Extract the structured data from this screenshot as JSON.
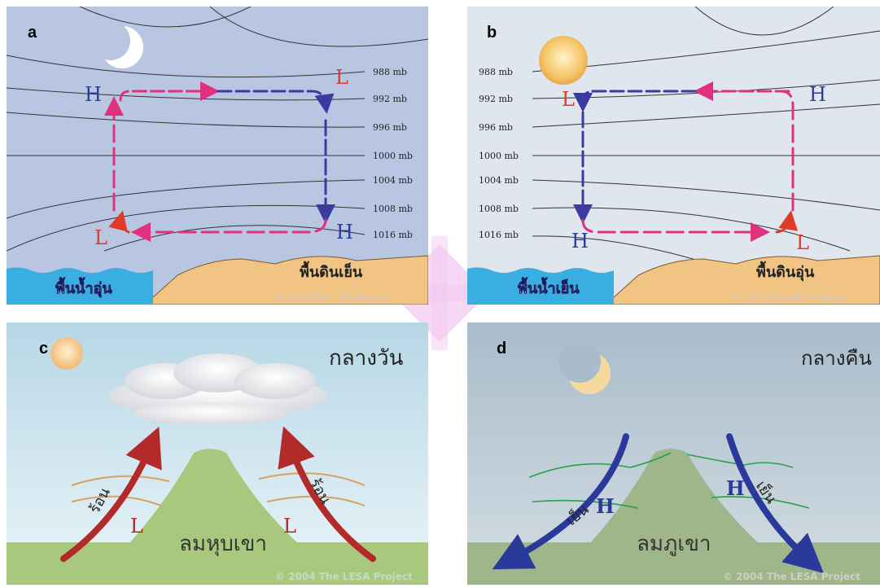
{
  "panels": {
    "a": {
      "letter": "a",
      "isobars": [
        "988 mb",
        "992 mb",
        "996 mb",
        "1000 mb",
        "1004 mb",
        "1008 mb",
        "1016 mb"
      ],
      "high_top": "H",
      "low_top": "L",
      "low_bottom": "L",
      "high_bottom": "H",
      "water_label": "พื้นน้ำอุ่น",
      "land_label": "พื้นดินเย็น",
      "copyright": "© 2003 The LESA Project"
    },
    "b": {
      "letter": "b",
      "isobars": [
        "988 mb",
        "992 mb",
        "996 mb",
        "1000 mb",
        "1004 mb",
        "1008 mb",
        "1016 mb"
      ],
      "low_top": "L",
      "high_top": "H",
      "high_bottom": "H",
      "low_bottom": "L",
      "water_label": "พื้นน้ำเย็น",
      "land_label": "พื้นดินอุ่น",
      "copyright": "© 2003 The LESA Project"
    },
    "c": {
      "letter": "c",
      "time_label": "กลางวัน",
      "left_temp": "ร้อน",
      "right_temp": "ร้อน",
      "left_pressure": "L",
      "right_pressure": "L",
      "wind_label": "ลมหุบเขา",
      "copyright": "© 2004 The LESA Project"
    },
    "d": {
      "letter": "d",
      "time_label": "กลางคืน",
      "left_temp": "เย็น",
      "right_temp": "เย็น",
      "left_pressure": "H",
      "right_pressure": "H",
      "wind_label": "ลมภูเขา",
      "copyright": "© 2004 The LESA Project"
    }
  },
  "colors": {
    "night_sky": "#b9c6e2",
    "day_sky": "#dfe6ee",
    "water": "#3aaee0",
    "sand": "#f2c484",
    "pink_arrow": "#e0307e",
    "blue_arrow": "#3b3aa0",
    "red_label": "#e03a2a",
    "blue_label": "#2b3e9e",
    "mountain": "#a8c87e",
    "warm_arrow": "#b22a2a",
    "cool_arrow": "#2a3a9a",
    "watermark": "#f3c8f0"
  }
}
